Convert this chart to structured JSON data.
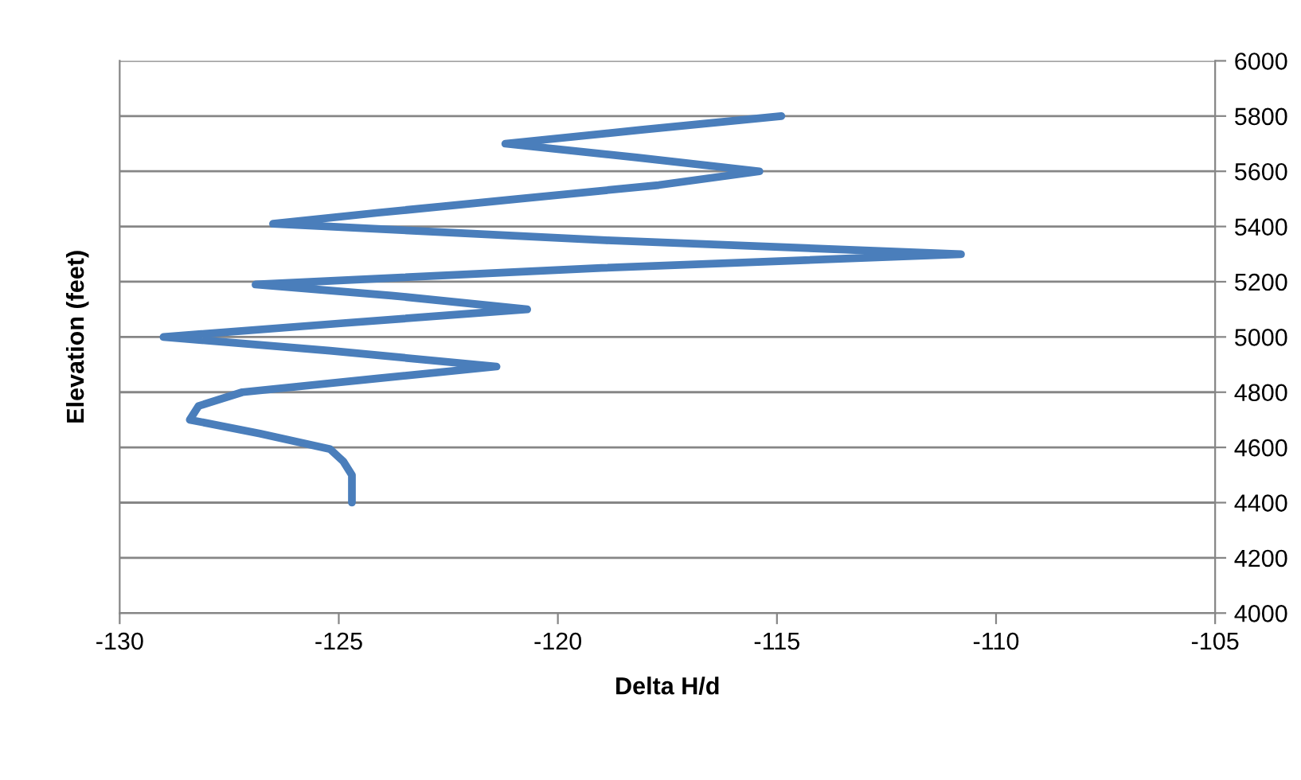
{
  "chart_data": {
    "type": "line",
    "xlabel": "Delta H/d",
    "ylabel": "Elevation (feet)",
    "xlim": [
      -130,
      -105
    ],
    "xticks": [
      -130,
      -125,
      -120,
      -115,
      -110,
      -105
    ],
    "ylim": [
      4000,
      6000
    ],
    "yticks": [
      4000,
      4200,
      4400,
      4600,
      4800,
      5000,
      5200,
      5400,
      5600,
      5800,
      6000
    ],
    "grid": "y",
    "legend": false,
    "marker": "none",
    "line_style": "solid",
    "series": [
      {
        "color": "#4a7ebb",
        "x": [
          -114.9,
          -118.1,
          -121.2,
          -118.2,
          -115.4,
          -117.7,
          -120.9,
          -124.1,
          -126.5,
          -118.9,
          -110.8,
          -119.0,
          -126.9,
          -123.8,
          -120.7,
          -124.9,
          -129.0,
          -125.2,
          -121.4,
          -124.1,
          -127.2,
          -128.2,
          -128.4,
          -126.8,
          -125.2,
          -124.9,
          -124.7,
          -124.7
        ],
        "values": [
          5800,
          5750,
          5700,
          5650,
          5600,
          5550,
          5500,
          5450,
          5410,
          5350,
          5300,
          5250,
          5190,
          5150,
          5100,
          5050,
          5000,
          4950,
          4893,
          4850,
          4800,
          4750,
          4700,
          4650,
          4594,
          4550,
          4500,
          4400
        ]
      }
    ]
  }
}
